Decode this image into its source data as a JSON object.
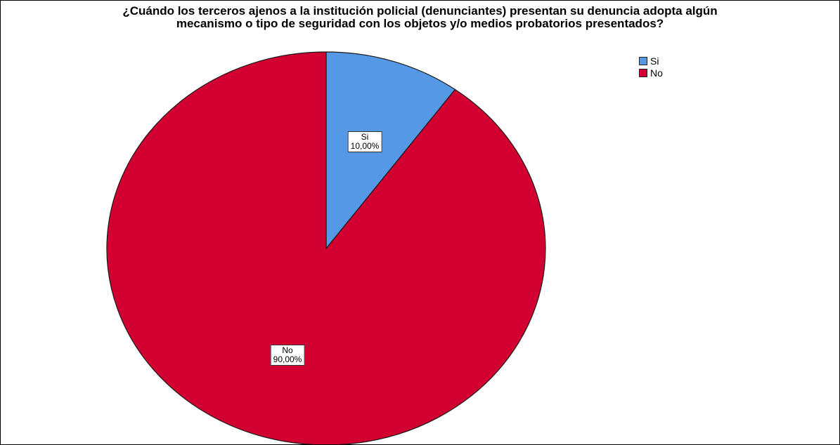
{
  "chart_data": {
    "type": "pie",
    "title_lines": [
      "¿Cuándo los terceros ajenos a la institución policial (denunciantes) presentan su denuncia adopta algún",
      "mecanismo o tipo de seguridad con los objetos y/o medios probatorios presentados?"
    ],
    "slices": [
      {
        "label": "Si",
        "value": 10.0,
        "display": "10,00%",
        "color": "#5599e6"
      },
      {
        "label": "No",
        "value": 90.0,
        "display": "90,00%",
        "color": "#d10030"
      }
    ],
    "start_angle_deg": 0,
    "direction": "clockwise",
    "legend_position": "top-right"
  }
}
